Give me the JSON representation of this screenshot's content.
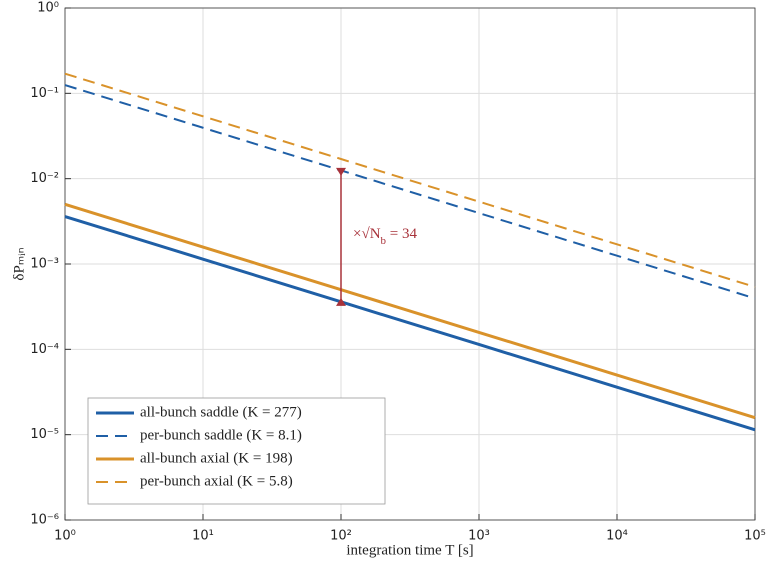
{
  "chart_data": {
    "type": "line",
    "xlabel": "integration time T [s]",
    "ylabel": "δPₘᵢₙ",
    "xlog": true,
    "ylog": true,
    "grid": true,
    "legend": "lower left",
    "x": [
      1,
      10,
      100,
      1000,
      10000,
      100000
    ],
    "xlim": [
      1,
      100000
    ],
    "xticks": [
      {
        "value": 1,
        "label": "10⁰"
      },
      {
        "value": 10,
        "label": "10¹"
      },
      {
        "value": 100,
        "label": "10²"
      },
      {
        "value": 1000,
        "label": "10³"
      },
      {
        "value": 10000,
        "label": "10⁴"
      },
      {
        "value": 100000,
        "label": "10⁵"
      }
    ],
    "ylim": [
      1e-06,
      1
    ],
    "yticks": [
      {
        "value": 1e-06,
        "label": "10⁻⁶"
      },
      {
        "value": 1e-05,
        "label": "10⁻⁵"
      },
      {
        "value": 0.0001,
        "label": "10⁻⁴"
      },
      {
        "value": 0.001,
        "label": "10⁻³"
      },
      {
        "value": 0.01,
        "label": "10⁻²"
      },
      {
        "value": 0.1,
        "label": "10⁻¹"
      },
      {
        "value": 1,
        "label": "10⁰"
      }
    ],
    "series": [
      {
        "name": "all-bunch saddle (K = 277)",
        "color": "#1f5fa6",
        "dash": false,
        "values": [
          0.0036,
          0.00114,
          0.00036,
          0.000114,
          3.6e-05,
          1.14e-05
        ]
      },
      {
        "name": "per-bunch saddle (K = 8.1)",
        "color": "#1f5fa6",
        "dash": true,
        "values": [
          0.125,
          0.0395,
          0.0125,
          0.00395,
          0.00125,
          0.000395
        ]
      },
      {
        "name": "all-bunch axial (K = 198)",
        "color": "#d9922a",
        "dash": false,
        "values": [
          0.005,
          0.00158,
          0.0005,
          0.000158,
          5e-05,
          1.58e-05
        ]
      },
      {
        "name": "per-bunch axial (K = 5.8)",
        "color": "#d9922a",
        "dash": true,
        "values": [
          0.17,
          0.0538,
          0.017,
          0.00538,
          0.0017,
          0.000538
        ]
      }
    ],
    "annotation": {
      "x": 100,
      "y1": 0.00036,
      "y2": 0.012,
      "color": "#a8323a",
      "label_parts": [
        "×√N",
        "b",
        " = 34"
      ]
    }
  }
}
